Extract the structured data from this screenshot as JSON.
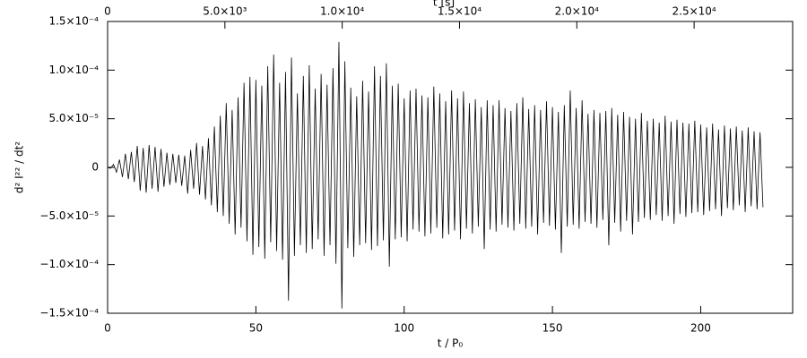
{
  "chart_data": {
    "type": "line",
    "x_label": "t / P₀",
    "x2_label": "t [s]",
    "y_label": "d² I²² / dt²",
    "color": "#000000",
    "xlim": [
      0,
      231
    ],
    "xticks": [
      0,
      50,
      100,
      150,
      200
    ],
    "x2lim": [
      0,
      29200
    ],
    "x2ticks": [
      0,
      {
        "value": 5000,
        "label": "5.0×10³"
      },
      {
        "value": 10000,
        "label": "1.0×10⁴"
      },
      {
        "value": 15000,
        "label": "1.5×10⁴"
      },
      {
        "value": 20000,
        "label": "2.0×10⁴"
      },
      {
        "value": 25000,
        "label": "2.5×10⁴"
      }
    ],
    "ylim": [
      -0.00015,
      0.00015
    ],
    "yticks": [
      {
        "value": -0.00015,
        "label": "−1.5×10⁻⁴"
      },
      {
        "value": -0.0001,
        "label": "−1.0×10⁻⁴"
      },
      {
        "value": -5e-05,
        "label": "−5.0×10⁻⁵"
      },
      0,
      {
        "value": 5e-05,
        "label": "5.0×10⁻⁵"
      },
      {
        "value": 0.0001,
        "label": "1.0×10⁻⁴"
      },
      {
        "value": 0.00015,
        "label": "1.5×10⁻⁴"
      }
    ],
    "x": [
      0,
      1,
      2,
      3,
      4,
      5,
      6,
      7,
      8,
      9,
      10,
      11,
      12,
      13,
      14,
      15,
      16,
      17,
      18,
      19,
      20,
      21,
      22,
      23,
      24,
      25,
      26,
      27,
      28,
      29,
      30,
      31,
      32,
      33,
      34,
      35,
      36,
      37,
      38,
      39,
      40,
      41,
      42,
      43,
      44,
      45,
      46,
      47,
      48,
      49,
      50,
      51,
      52,
      53,
      54,
      55,
      56,
      57,
      58,
      59,
      60,
      61,
      62,
      63,
      64,
      65,
      66,
      67,
      68,
      69,
      70,
      71,
      72,
      73,
      74,
      75,
      76,
      77,
      78,
      79,
      80,
      81,
      82,
      83,
      84,
      85,
      86,
      87,
      88,
      89,
      90,
      91,
      92,
      93,
      94,
      95,
      96,
      97,
      98,
      99,
      100,
      101,
      102,
      103,
      104,
      105,
      106,
      107,
      108,
      109,
      110,
      111,
      112,
      113,
      114,
      115,
      116,
      117,
      118,
      119,
      120,
      121,
      122,
      123,
      124,
      125,
      126,
      127,
      128,
      129,
      130,
      131,
      132,
      133,
      134,
      135,
      136,
      137,
      138,
      139,
      140,
      141,
      142,
      143,
      144,
      145,
      146,
      147,
      148,
      149,
      150,
      151,
      152,
      153,
      154,
      155,
      156,
      157,
      158,
      159,
      160,
      161,
      162,
      163,
      164,
      165,
      166,
      167,
      168,
      169,
      170,
      171,
      172,
      173,
      174,
      175,
      176,
      177,
      178,
      179,
      180,
      181,
      182,
      183,
      184,
      185,
      186,
      187,
      188,
      189,
      190,
      191,
      192,
      193,
      194,
      195,
      196,
      197,
      198,
      199,
      200,
      201,
      202,
      203,
      204,
      205,
      206,
      207,
      208,
      209,
      210,
      211,
      212,
      213,
      214,
      215,
      216,
      217,
      218,
      219,
      220,
      221
    ],
    "values": [
      0,
      -1e-06,
      3e-06,
      -5e-06,
      8e-06,
      -1e-05,
      1.4e-05,
      -1.2e-05,
      1.6e-05,
      -1.5e-05,
      2.2e-05,
      -2.4e-05,
      2e-05,
      -2.6e-05,
      2.3e-05,
      -2.2e-05,
      2.1e-05,
      -2.5e-05,
      1.9e-05,
      -2e-05,
      1.5e-05,
      -1.8e-05,
      1.4e-05,
      -1.6e-05,
      1.3e-05,
      -1.9e-05,
      1.2e-05,
      -2.7e-05,
      1.8e-05,
      -2.2e-05,
      2.5e-05,
      -2.8e-05,
      2.2e-05,
      -3.3e-05,
      3e-05,
      -3.9e-05,
      4.2e-05,
      -4.6e-05,
      5.3e-05,
      -5e-05,
      6.6e-05,
      -5.8e-05,
      5.9e-05,
      -6.9e-05,
      7.2e-05,
      -6.2e-05,
      8.7e-05,
      -7.6e-05,
      9.3e-05,
      -9e-05,
      9e-05,
      -8.2e-05,
      8.4e-05,
      -9.4e-05,
      0.000104,
      -7.7e-05,
      0.000116,
      -8.6e-05,
      8.7e-05,
      -9.5e-05,
      9.8e-05,
      -0.000137,
      0.000113,
      -9.1e-05,
      7.6e-05,
      -8e-05,
      9.4e-05,
      -8.8e-05,
      0.000105,
      -8.4e-05,
      8.1e-05,
      -7.4e-05,
      9.6e-05,
      -9.1e-05,
      8.5e-05,
      -8e-05,
      0.000102,
      -9.9e-05,
      0.000129,
      -0.000145,
      0.000109,
      -8.3e-05,
      8.2e-05,
      -9.2e-05,
      7.3e-05,
      -8e-05,
      8.9e-05,
      -7.8e-05,
      7.8e-05,
      -8.5e-05,
      0.000104,
      -8.1e-05,
      9.4e-05,
      -7.5e-05,
      0.000107,
      -0.000102,
      8.4e-05,
      -7.4e-05,
      8.6e-05,
      -7.2e-05,
      7.1e-05,
      -7.6e-05,
      7.9e-05,
      -6.4e-05,
      8.1e-05,
      -6.6e-05,
      7.4e-05,
      -7.1e-05,
      7.2e-05,
      -6.8e-05,
      8.3e-05,
      -6.2e-05,
      7.6e-05,
      -7.3e-05,
      6.8e-05,
      -6.9e-05,
      7.9e-05,
      -6.5e-05,
      7.1e-05,
      -7.4e-05,
      7.8e-05,
      -6.3e-05,
      6.6e-05,
      -6.8e-05,
      7e-05,
      -6.1e-05,
      6.2e-05,
      -8.4e-05,
      6.9e-05,
      -6.4e-05,
      6.4e-05,
      -6.6e-05,
      6.9e-05,
      -5.9e-05,
      6.1e-05,
      -6.2e-05,
      5.8e-05,
      -6.5e-05,
      6.6e-05,
      -5.8e-05,
      7.2e-05,
      -6.3e-05,
      6e-05,
      -6.1e-05,
      6.4e-05,
      -6.9e-05,
      5.9e-05,
      -5.7e-05,
      6.8e-05,
      -6e-05,
      6.2e-05,
      -6.4e-05,
      5.7e-05,
      -8.8e-05,
      6.4e-05,
      -6.1e-05,
      7.9e-05,
      -5.9e-05,
      6.1e-05,
      -6.3e-05,
      6.9e-05,
      -5.6e-05,
      5.5e-05,
      -5.8e-05,
      5.9e-05,
      -6.2e-05,
      5.6e-05,
      -5.4e-05,
      5.8e-05,
      -8e-05,
      6.1e-05,
      -5.7e-05,
      5.4e-05,
      -6.6e-05,
      5.7e-05,
      -5.5e-05,
      5.2e-05,
      -6.9e-05,
      5e-05,
      -5.6e-05,
      5.6e-05,
      -5.2e-05,
      4.8e-05,
      -5.4e-05,
      5e-05,
      -4.9e-05,
      4.6e-05,
      -5.5e-05,
      5.3e-05,
      -5e-05,
      4.7e-05,
      -5.8e-05,
      4.9e-05,
      -4.8e-05,
      4.6e-05,
      -5.1e-05,
      4.5e-05,
      -4.7e-05,
      4.8e-05,
      -4.6e-05,
      4.4e-05,
      -4.9e-05,
      4.1e-05,
      -4.5e-05,
      4.5e-05,
      -4.3e-05,
      3.9e-05,
      -5e-05,
      4.3e-05,
      -4.2e-05,
      4e-05,
      -4.4e-05,
      4.2e-05,
      -3.9e-05,
      3.8e-05,
      -4.6e-05,
      4.1e-05,
      -4e-05,
      3.7e-05,
      -4.3e-05,
      3.6e-05,
      -4.1e-05
    ]
  }
}
